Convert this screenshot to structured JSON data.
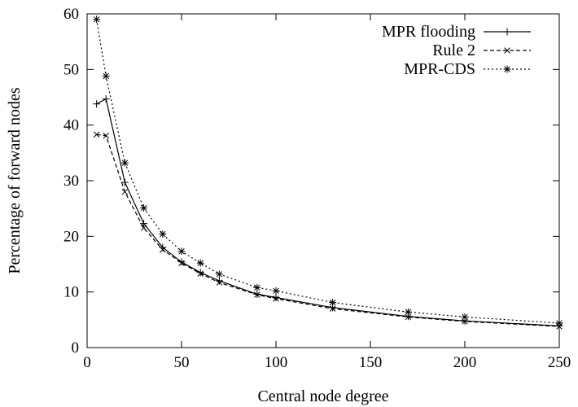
{
  "chart_data": {
    "type": "line",
    "xlabel": "Central node degree",
    "ylabel": "Percentage of forward nodes",
    "xlim": [
      0,
      250
    ],
    "ylim": [
      0,
      60
    ],
    "xticks": [
      0,
      50,
      100,
      150,
      200,
      250
    ],
    "yticks": [
      0,
      10,
      20,
      30,
      40,
      50,
      60
    ],
    "grid": false,
    "legend_position": "top-right",
    "series": [
      {
        "name": "MPR flooding",
        "line_style": "solid",
        "marker": "plus",
        "color": "#000000",
        "x": [
          5,
          10,
          20,
          30,
          40,
          50,
          60,
          70,
          90,
          100,
          130,
          170,
          200,
          250
        ],
        "y": [
          43.8,
          44.7,
          29.7,
          22.3,
          18.0,
          15.4,
          13.5,
          12.0,
          9.6,
          9.0,
          7.2,
          5.6,
          4.8,
          3.9
        ]
      },
      {
        "name": "Rule 2",
        "line_style": "dashed",
        "marker": "x",
        "color": "#000000",
        "x": [
          5,
          10,
          20,
          30,
          40,
          50,
          60,
          70,
          90,
          100,
          130,
          170,
          200,
          250
        ],
        "y": [
          38.3,
          38.1,
          28.0,
          21.5,
          17.6,
          15.2,
          13.3,
          11.7,
          9.5,
          8.8,
          7.0,
          5.5,
          4.7,
          3.8
        ]
      },
      {
        "name": "MPR-CDS",
        "line_style": "dotted",
        "marker": "star",
        "color": "#000000",
        "x": [
          5,
          10,
          20,
          30,
          40,
          50,
          60,
          70,
          90,
          100,
          130,
          170,
          200,
          250
        ],
        "y": [
          59.0,
          48.8,
          33.2,
          25.1,
          20.4,
          17.3,
          15.2,
          13.2,
          10.8,
          10.2,
          8.1,
          6.4,
          5.5,
          4.4
        ]
      }
    ]
  }
}
